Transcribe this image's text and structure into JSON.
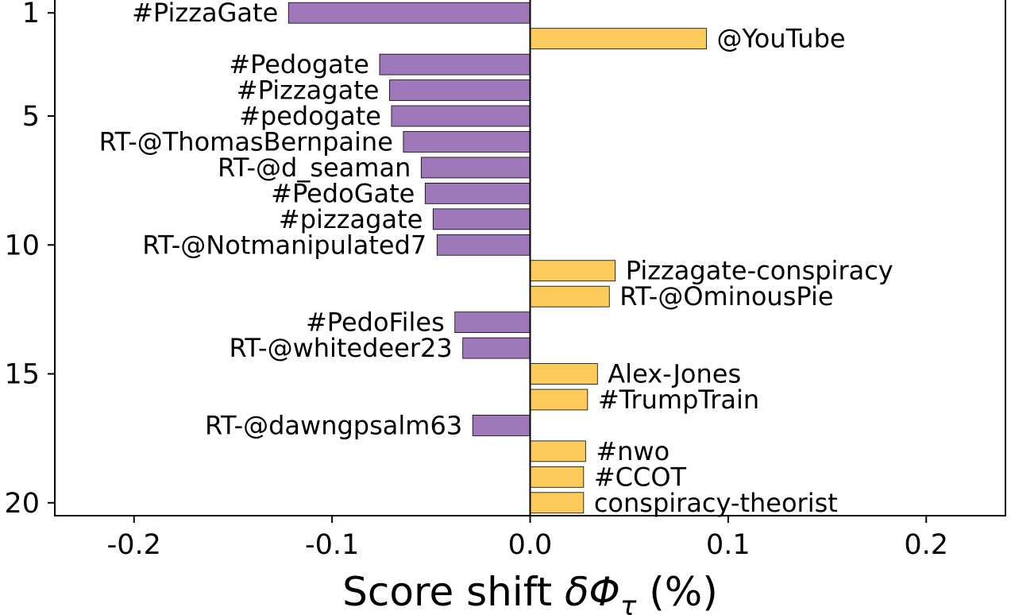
{
  "chart_data": {
    "type": "bar",
    "orientation": "horizontal",
    "xlabel_text": "Score shift ",
    "xlabel_symbol": "δΦ",
    "xlabel_subscript": "τ",
    "xlabel_suffix": " (%)",
    "xlim": [
      -0.24,
      0.24
    ],
    "ylim": [
      0.5,
      20.5
    ],
    "y_inverted": true,
    "x_ticks": [
      -0.2,
      -0.1,
      0.0,
      0.1,
      0.2
    ],
    "x_tick_labels": [
      "-0.2",
      "-0.1",
      "0.0",
      "0.1",
      "0.2"
    ],
    "y_ticks": [
      1,
      5,
      10,
      15,
      20
    ],
    "y_tick_labels": [
      "1",
      "5",
      "10",
      "15",
      "20"
    ],
    "colors": {
      "negative": "#9e78b8",
      "positive": "#fdca5c",
      "edge": "#000000"
    },
    "bars": [
      {
        "rank": 1,
        "label": "#PizzaGate",
        "value": -0.122
      },
      {
        "rank": 2,
        "label": "@YouTube",
        "value": 0.089
      },
      {
        "rank": 3,
        "label": "#Pedogate",
        "value": -0.076
      },
      {
        "rank": 4,
        "label": "#Pizzagate",
        "value": -0.071
      },
      {
        "rank": 5,
        "label": "#pedogate",
        "value": -0.07
      },
      {
        "rank": 6,
        "label": "RT-@ThomasBernpaine",
        "value": -0.064
      },
      {
        "rank": 7,
        "label": "RT-@d_seaman",
        "value": -0.055
      },
      {
        "rank": 8,
        "label": "#PedoGate",
        "value": -0.053
      },
      {
        "rank": 9,
        "label": "#pizzagate",
        "value": -0.049
      },
      {
        "rank": 10,
        "label": "RT-@Notmanipulated7",
        "value": -0.047
      },
      {
        "rank": 11,
        "label": "Pizzagate-conspiracy",
        "value": 0.043
      },
      {
        "rank": 12,
        "label": "RT-@OminousPie",
        "value": 0.04
      },
      {
        "rank": 13,
        "label": "#PedoFiles",
        "value": -0.038
      },
      {
        "rank": 14,
        "label": "RT-@whitedeer23",
        "value": -0.034
      },
      {
        "rank": 15,
        "label": "Alex-Jones",
        "value": 0.034
      },
      {
        "rank": 16,
        "label": "#TrumpTrain",
        "value": 0.029
      },
      {
        "rank": 17,
        "label": "RT-@dawngpsalm63",
        "value": -0.029
      },
      {
        "rank": 18,
        "label": "#nwo",
        "value": 0.028
      },
      {
        "rank": 19,
        "label": "#CCOT",
        "value": 0.027
      },
      {
        "rank": 20,
        "label": "conspiracy-theorist",
        "value": 0.027
      }
    ]
  }
}
